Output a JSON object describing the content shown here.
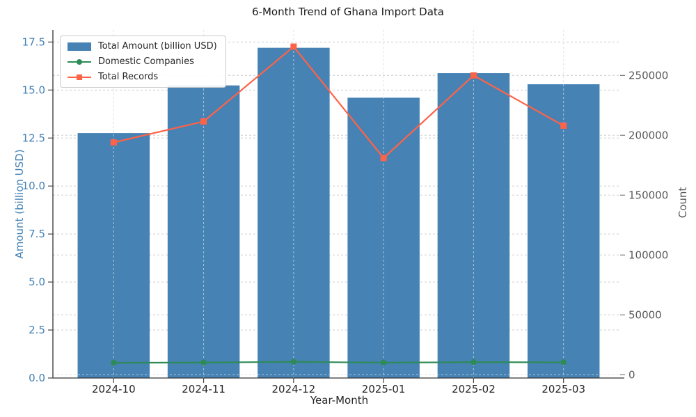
{
  "chart_data": {
    "type": "bar",
    "title": "6-Month Trend of Ghana Import Data",
    "xlabel": "Year-Month",
    "ylabel_left": "Amount (billion USD)",
    "ylabel_right": "Count",
    "categories": [
      "2024-10",
      "2024-11",
      "2024-12",
      "2025-01",
      "2025-02",
      "2025-03"
    ],
    "series": [
      {
        "name": "Total Amount (billion USD)",
        "type": "bar",
        "axis": "left",
        "color": "#4682b4",
        "values": [
          12.76,
          15.24,
          17.2,
          14.6,
          15.88,
          15.3
        ]
      },
      {
        "name": "Domestic Companies",
        "type": "line",
        "marker": "circle",
        "axis": "right",
        "color": "#2e8b57",
        "values": [
          10000,
          10200,
          10800,
          10100,
          10500,
          10400
        ]
      },
      {
        "name": "Total Records",
        "type": "line",
        "marker": "square",
        "axis": "right",
        "color": "#ff6347",
        "values": [
          194000,
          211500,
          274000,
          181000,
          250000,
          208000
        ]
      }
    ],
    "y_left": {
      "ticks": [
        "0.0",
        "2.5",
        "5.0",
        "7.5",
        "10.0",
        "12.5",
        "15.0",
        "17.5"
      ],
      "tick_values": [
        0,
        2.5,
        5,
        7.5,
        10,
        12.5,
        15,
        17.5
      ],
      "min": 0,
      "max": 18.13,
      "color": "#4682b4"
    },
    "y_right": {
      "ticks": [
        "0",
        "50000",
        "100000",
        "150000",
        "200000",
        "250000"
      ],
      "tick_values": [
        0,
        50000,
        100000,
        150000,
        200000,
        250000
      ],
      "min": -2730,
      "max": 287970,
      "color": "#595959"
    },
    "grid": {
      "dashed": true,
      "color": "#cccccc",
      "vertical": true
    },
    "legend_position": "upper-left"
  }
}
